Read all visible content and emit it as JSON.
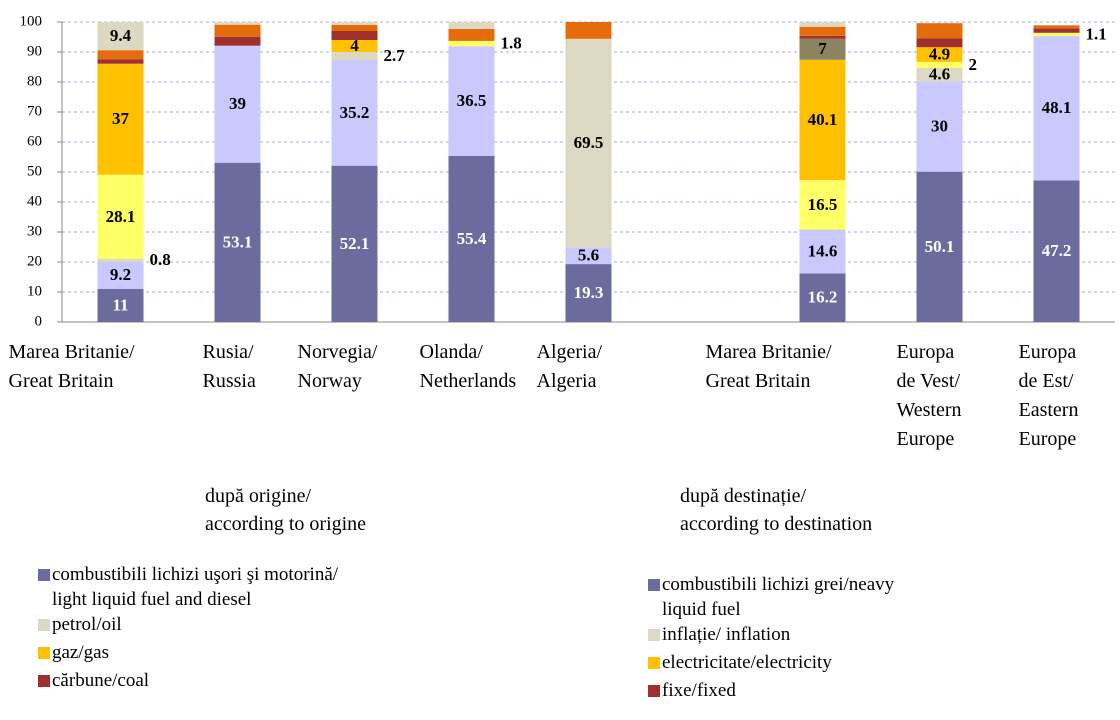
{
  "chart_data": {
    "type": "stacked_bar",
    "categories": [
      "Marea Britanie/\nGreat Britain",
      "Rusia/\nRussia",
      "Norvegia/\nNorway",
      "Olanda/\nNetherlands",
      "Algeria/\nAlgeria",
      null,
      "Marea Britanie/\nGreat Britain",
      "Europa\nde Vest/\nWestern\nEurope",
      "Europa\nde Est/\nEastern\nEurope"
    ],
    "series": [
      {
        "color": "#6b6b9e",
        "values": [
          11,
          53.1,
          52.1,
          55.4,
          19.3,
          null,
          16.2,
          50.1,
          47.2
        ],
        "value_labels": [
          "11",
          "53.1",
          "52.1",
          "55.4",
          "19.3",
          null,
          "16.2",
          "50.1",
          "47.2"
        ]
      },
      {
        "color": "#c9c9ff",
        "values": [
          9.2,
          39,
          35.2,
          36.5,
          5.6,
          null,
          14.6,
          30,
          48.1
        ],
        "value_labels": [
          "9.2",
          "39",
          "35.2",
          "36.5",
          "5.6",
          null,
          "14.6",
          "30",
          "48.1"
        ]
      },
      {
        "color": "#dcd8c2",
        "values": [
          0.8,
          null,
          2.7,
          null,
          69.5,
          null,
          null,
          4.6,
          null
        ],
        "value_labels": [
          "0.8",
          null,
          "2.7",
          null,
          "69.5",
          null,
          null,
          "4.6",
          null
        ]
      },
      {
        "color": "#ffff66",
        "values": [
          28.1,
          null,
          null,
          1.8,
          null,
          null,
          16.5,
          2,
          1.1
        ],
        "value_labels": [
          "28.1",
          null,
          null,
          "1.8",
          null,
          null,
          "16.5",
          "2",
          "1.1"
        ]
      },
      {
        "color": "#ffc000",
        "values": [
          37,
          null,
          4,
          null,
          null,
          null,
          40.1,
          4.9,
          null
        ],
        "value_labels": [
          "37",
          null,
          "4",
          null,
          null,
          null,
          "40.1",
          "4.9",
          null
        ]
      },
      {
        "color": "#8c8460",
        "values": [
          null,
          null,
          null,
          null,
          null,
          null,
          7,
          null,
          null
        ],
        "value_labels": [
          null,
          null,
          null,
          null,
          null,
          null,
          "7",
          null,
          null
        ]
      },
      {
        "color": "#a0302e",
        "values": [
          1.5,
          3,
          3,
          null,
          null,
          null,
          1,
          3,
          1.5
        ]
      },
      {
        "color": "#e46c0a",
        "values": [
          3,
          4,
          2,
          4,
          5.6,
          null,
          3,
          5,
          1
        ]
      },
      {
        "color": "#dcd8c2",
        "values": [
          9.4,
          0.9,
          1,
          2.3,
          null,
          null,
          1.6,
          null,
          null
        ],
        "value_labels": [
          "9.4",
          null,
          null,
          null,
          null,
          null,
          null,
          null,
          null
        ]
      }
    ],
    "ylim": [
      0,
      100
    ],
    "yticks": [
      0,
      10,
      20,
      30,
      40,
      50,
      60,
      70,
      80,
      90,
      100
    ],
    "grid": true,
    "group_labels": [
      "după origine/\naccording to origine",
      "după destinație/\naccording to destination"
    ],
    "legends": [
      {
        "items": [
          {
            "label": "combustibili lichizi uşori şi motorină/\nlight liquid fuel and diesel",
            "color": "#6b6b9e"
          },
          {
            "label": "petrol/oil",
            "color": "#dcd8c2"
          },
          {
            "label": "gaz/gas",
            "color": "#ffc000"
          },
          {
            "label": "cărbune/coal",
            "color": "#a0302e"
          }
        ]
      },
      {
        "items": [
          {
            "label": "combustibili lichizi grei/neavy\nliquid fuel",
            "color": "#6b6b9e"
          },
          {
            "label": "inflație/ inflation",
            "color": "#dcd8c2"
          },
          {
            "label": "electricitate/electricity",
            "color": "#ffc000"
          },
          {
            "label": "fixe/fixed",
            "color": "#a0302e"
          }
        ]
      }
    ]
  }
}
